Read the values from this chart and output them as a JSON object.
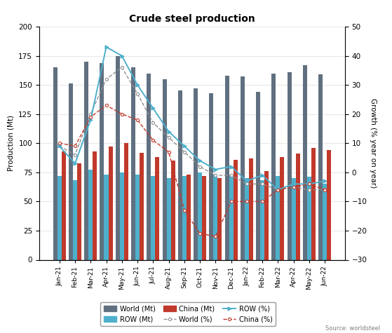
{
  "title": "Crude steel production",
  "months": [
    "Jan-21",
    "Feb-21",
    "Mar-21",
    "Apr-21",
    "May-21",
    "Jun-21",
    "Jul-21",
    "Aug-21",
    "Sep-21",
    "Oct-21",
    "Nov-21",
    "Dec-21",
    "Jan-22",
    "Feb-22",
    "Mar-22",
    "Apr-22",
    "May-22",
    "Jun-22"
  ],
  "world_mt": [
    165,
    151,
    170,
    169,
    175,
    165,
    160,
    155,
    145,
    147,
    143,
    158,
    157,
    144,
    160,
    161,
    167,
    159
  ],
  "row_mt": [
    72,
    68,
    77,
    73,
    75,
    73,
    72,
    70,
    72,
    75,
    73,
    72,
    70,
    68,
    72,
    70,
    71,
    65
  ],
  "china_mt": [
    93,
    83,
    93,
    97,
    100,
    92,
    88,
    85,
    73,
    72,
    70,
    86,
    87,
    76,
    88,
    91,
    96,
    94
  ],
  "world_pct": [
    9,
    6,
    20,
    32,
    36,
    27,
    17,
    12,
    7,
    2,
    -1,
    -1,
    -4,
    -4,
    -6,
    -5,
    -6,
    -5.9
  ],
  "row_pct": [
    9,
    3,
    18,
    43,
    40,
    30,
    22,
    14,
    9,
    4,
    1,
    2,
    -3,
    -1,
    -6,
    -4,
    -4,
    -3
  ],
  "china_pct": [
    10,
    9,
    19,
    23,
    20,
    18,
    11,
    7,
    -13,
    -21,
    -22,
    -10,
    -10,
    -10,
    -6,
    -5,
    -4,
    -6
  ],
  "ylabel_left": "Production (Mt)",
  "ylabel_right": "Growth (% year on year)",
  "ylim_left": [
    0,
    200
  ],
  "ylim_right": [
    -30,
    50
  ],
  "yticks_left": [
    0,
    25,
    50,
    75,
    100,
    125,
    150,
    175,
    200
  ],
  "yticks_right": [
    -30,
    -20,
    -10,
    0,
    10,
    20,
    30,
    40,
    50
  ],
  "world_bar_color": "#607080",
  "row_bar_color": "#4EB0CC",
  "china_bar_color": "#C0392B",
  "world_pct_color": "#909090",
  "row_pct_color": "#4EB0CC",
  "china_pct_color": "#C0392B",
  "source": "Source: worldsteel",
  "bar_width": 0.27
}
